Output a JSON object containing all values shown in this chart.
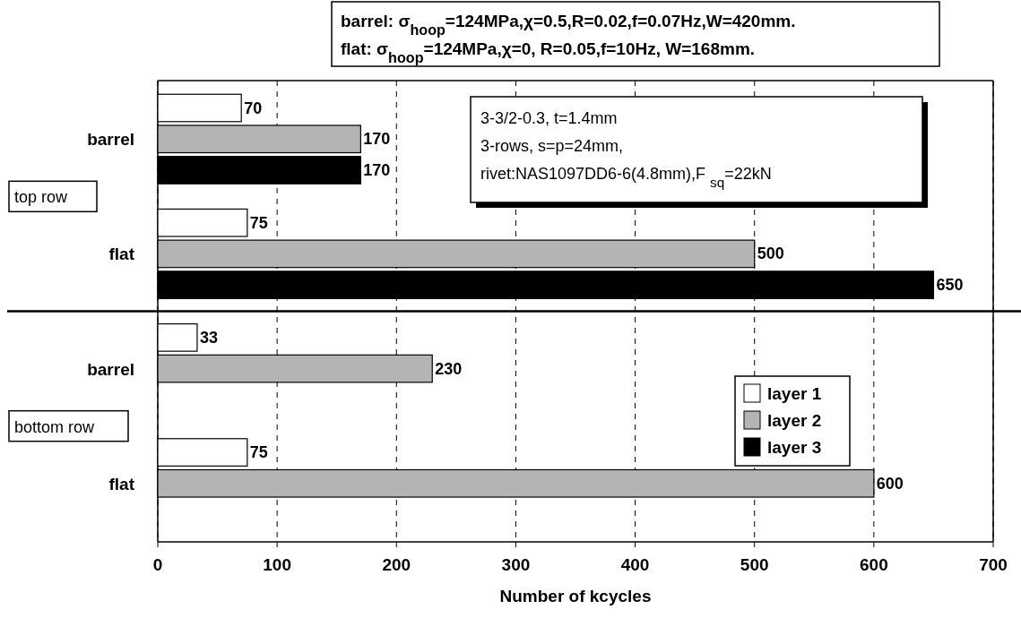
{
  "chart_data": {
    "type": "bar",
    "orientation": "horizontal",
    "xlabel": "Number of kcycles",
    "categories": [
      "barrel",
      "flat",
      "barrel",
      "flat"
    ],
    "series": [
      {
        "name": "layer 1",
        "color": "#ffffff",
        "values": [
          70,
          75,
          33,
          75
        ]
      },
      {
        "name": "layer 2",
        "color": "#b4b4b4",
        "values": [
          170,
          500,
          230,
          600
        ]
      },
      {
        "name": "layer 3",
        "color": "#000000",
        "values": [
          170,
          650,
          null,
          null
        ]
      }
    ],
    "xlim": [
      0,
      700
    ],
    "xticks": [
      0,
      100,
      200,
      300,
      400,
      500,
      600,
      700
    ],
    "grid": "x",
    "legend": "right",
    "data_labels": true,
    "annotations": [
      "barrel: σ$_{hoop}$=124MPa,χ=0.5,R=0.02,f=0.07Hz,W=420mm.",
      "flat: σ$_{hoop}$=124MPa,χ=0, R=0.05,f=10Hz, W=168mm.",
      "3-3/2-0.3, t=1.4mm",
      "3-rows, s=p=24mm,",
      "rivet:NAS1097DD6-6(4.8mm),F $_{sq}$=22kN",
      "top row",
      "bottom row"
    ]
  }
}
